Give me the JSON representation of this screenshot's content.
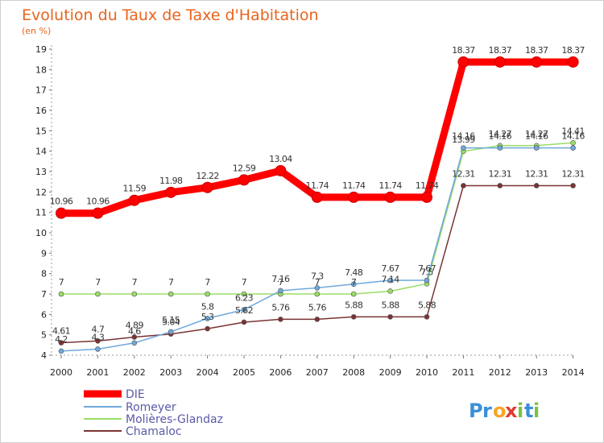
{
  "chart_data": {
    "type": "line",
    "title": "Evolution du Taux de Taxe d'Habitation",
    "subtitle": "(en %)",
    "x": [
      "2000",
      "2001",
      "2002",
      "2003",
      "2004",
      "2005",
      "2006",
      "2007",
      "2008",
      "2009",
      "2010",
      "2011",
      "2012",
      "2013",
      "2014"
    ],
    "yticks": [
      "4",
      "5",
      "6",
      "7",
      "8",
      "9",
      "10",
      "11",
      "12",
      "13",
      "14",
      "15",
      "16",
      "17",
      "18",
      "19"
    ],
    "ylim": [
      4,
      19
    ],
    "series": [
      {
        "name": "DIE",
        "color": "#ff0000",
        "values": [
          10.96,
          10.96,
          11.59,
          11.98,
          12.22,
          12.59,
          13.04,
          11.74,
          11.74,
          11.74,
          11.74,
          18.37,
          18.37,
          18.37,
          18.37
        ],
        "labels": [
          "10.96",
          "10.96",
          "11.59",
          "11.98",
          "12.22",
          "12.59",
          "13.04",
          "11.74",
          "11.74",
          "11.74",
          "11.74",
          "18.37",
          "18.37",
          "18.37",
          "18.37"
        ]
      },
      {
        "name": "Romeyer",
        "color": "#6fa8dc",
        "values": [
          4.2,
          4.3,
          4.6,
          5.15,
          5.8,
          6.23,
          7.16,
          7.3,
          7.48,
          7.67,
          7.67,
          14.16,
          14.16,
          14.16,
          14.16
        ],
        "labels": [
          "4.2",
          "4.3",
          "4.6",
          "5.15",
          "5.8",
          "6.23",
          "7.16",
          "7.3",
          "7.48",
          "7.67",
          "7.67",
          "14.16",
          "14.16",
          "14.16",
          "14.16"
        ]
      },
      {
        "name": "Molières-Glandaz",
        "color": "#99dd66",
        "values": [
          7,
          7,
          7,
          7,
          7,
          7,
          7,
          7,
          7,
          7.14,
          7.5,
          13.99,
          14.27,
          14.27,
          14.41
        ],
        "labels": [
          "7",
          "7",
          "7",
          "7",
          "7",
          "7",
          "7",
          "7",
          "7",
          "7.14",
          "7.5",
          "13.99",
          "14.27",
          "14.27",
          "14.41"
        ]
      },
      {
        "name": "Chamaloc",
        "color": "#7a3333",
        "values": [
          4.61,
          4.7,
          4.89,
          5.04,
          5.3,
          5.62,
          5.76,
          5.76,
          5.88,
          5.88,
          5.88,
          12.31,
          12.31,
          12.31,
          12.31
        ],
        "labels": [
          "4.61",
          "4.7",
          "4.89",
          "5.04",
          "5.3",
          "5.62",
          "5.76",
          "5.76",
          "5.88",
          "5.88",
          "5.88",
          "12.31",
          "12.31",
          "12.31",
          "12.31"
        ]
      }
    ],
    "legend_position": "bottom-left",
    "grid": false
  },
  "brand": {
    "logo_text": "Proxiti",
    "logo_letters": [
      "P",
      "r",
      "o",
      "x",
      "i",
      "t",
      "i"
    ],
    "logo_colors": [
      "#3a8fd8",
      "#3a8fd8",
      "#f5a623",
      "#e03c31",
      "#7cc242",
      "#3a8fd8",
      "#7cc242"
    ]
  }
}
